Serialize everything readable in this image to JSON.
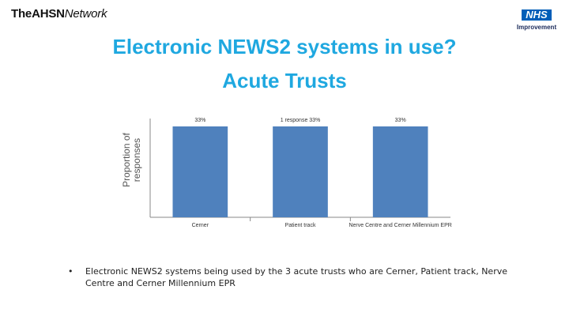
{
  "header": {
    "brand_the": "The",
    "brand_ahsn": "AHSN",
    "brand_network": "Network",
    "nhs_label": "NHS",
    "nhs_sub": "Improvement"
  },
  "title_line1": "Electronic NEWS2 systems in use?",
  "title_line2": "Acute Trusts",
  "chart_data": {
    "type": "bar",
    "categories": [
      "Cerner",
      "Patient track",
      "Nerve Centre and Cerner Millennium EPR"
    ],
    "values": [
      33,
      33,
      33
    ],
    "data_labels": [
      "33%",
      "1 response 33%",
      "33%"
    ],
    "ylabel": "Proportion of responses",
    "ylim": [
      0,
      33
    ],
    "grid": false,
    "bar_color": "#4F81BD"
  },
  "bullet": {
    "marker": "•",
    "text": "Electronic NEWS2 systems being used by the 3 acute trusts who are Cerner, Patient track, Nerve Centre and Cerner Millennium EPR"
  },
  "colors": {
    "title": "#1fa8e0",
    "nhs_blue": "#005EB8"
  }
}
